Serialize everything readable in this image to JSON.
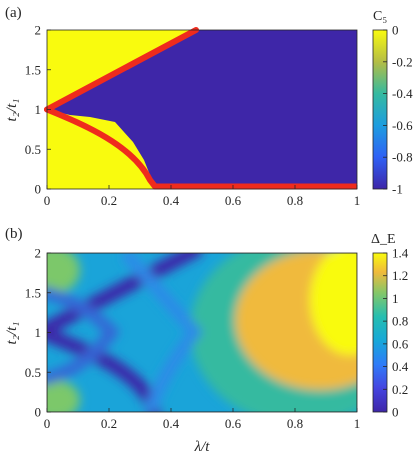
{
  "chart_data": [
    {
      "panel_label": "(a)",
      "type": "heatmap",
      "xlabel": "",
      "ylabel": "t₂/t₁",
      "xlim": [
        0,
        1
      ],
      "ylim": [
        0,
        2
      ],
      "xticks": [
        "0",
        "0.2",
        "0.4",
        "0.6",
        "0.8",
        "1"
      ],
      "yticks": [
        "0",
        "0.5",
        "1",
        "1.5",
        "2"
      ],
      "colorbar": {
        "title": "C₅",
        "range": [
          -1,
          0
        ],
        "ticks": [
          "0",
          "-0.2",
          "-0.4",
          "-0.6",
          "-0.8",
          "-1"
        ]
      },
      "regions": [
        {
          "value": 0,
          "description_color": "#f9fb0e"
        },
        {
          "value": -1,
          "description_color": "#3e26a8"
        }
      ],
      "phase_boundary": {
        "color": "#ef2b1d",
        "upper_line": [
          [
            0,
            1
          ],
          [
            0.48,
            2
          ]
        ],
        "lower_curve": [
          [
            0,
            1
          ],
          [
            0.1,
            0.84
          ],
          [
            0.2,
            0.62
          ],
          [
            0.28,
            0.4
          ],
          [
            0.33,
            0.18
          ],
          [
            0.35,
            0.03
          ]
        ],
        "bottom_line": [
          [
            0.35,
            0.03
          ],
          [
            1,
            0.03
          ]
        ]
      }
    },
    {
      "panel_label": "(b)",
      "type": "heatmap",
      "xlabel": "λ/t",
      "ylabel": "t₂/t₁",
      "xlim": [
        0,
        1
      ],
      "ylim": [
        0,
        2
      ],
      "xticks": [
        "0",
        "0.2",
        "0.4",
        "0.6",
        "0.8",
        "1"
      ],
      "yticks": [
        "0",
        "0.5",
        "1",
        "1.5",
        "2"
      ],
      "colorbar": {
        "title": "Δ_E",
        "range": [
          0,
          1.4
        ],
        "ticks": [
          "1.4",
          "1.2",
          "1",
          "0.8",
          "0.6",
          "0.4",
          "0.2",
          "0"
        ]
      },
      "minima_lines": [
        [
          [
            0,
            1
          ],
          [
            0.48,
            2
          ]
        ],
        [
          [
            0,
            1
          ],
          [
            0.1,
            0.84
          ],
          [
            0.2,
            0.62
          ],
          [
            0.28,
            0.4
          ],
          [
            0.33,
            0.18
          ],
          [
            0.35,
            0
          ]
        ]
      ],
      "max_region": {
        "x": [
          0.6,
          1
        ],
        "y": [
          0.7,
          2
        ],
        "value": 1.4
      }
    }
  ]
}
